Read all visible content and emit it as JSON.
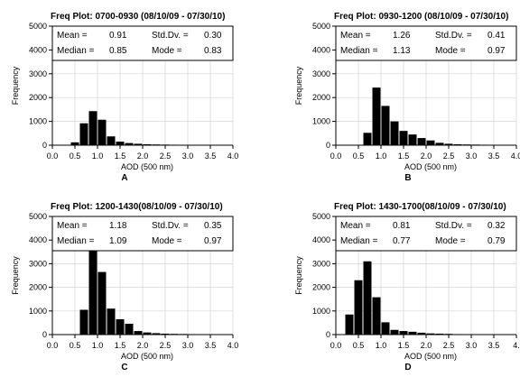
{
  "chart_data": [
    {
      "type": "bar",
      "panel": "A",
      "title": "Freq Plot: 0700-0930 (08/10/09 - 07/30/10)",
      "xlabel": "AOD (500 nm)",
      "ylabel": "Frequency",
      "xlim": [
        0.0,
        4.0
      ],
      "ylim": [
        0,
        5000
      ],
      "xticks": [
        "0.0",
        "0.5",
        "1.0",
        "1.5",
        "2.0",
        "2.5",
        "3.0",
        "3.5",
        "4.0"
      ],
      "yticks": [
        "0",
        "1000",
        "2000",
        "3000",
        "4000",
        "5000"
      ],
      "bin_width": 0.2,
      "x": [
        0.5,
        0.7,
        0.9,
        1.1,
        1.3,
        1.5,
        1.7,
        1.9,
        2.1,
        2.3,
        2.5,
        2.7,
        2.9,
        3.1
      ],
      "values": [
        120,
        920,
        1430,
        1070,
        370,
        150,
        90,
        60,
        40,
        30,
        25,
        20,
        15,
        10
      ],
      "grid": true,
      "stats": {
        "mean_label": "Mean =",
        "mean": "0.91",
        "std_label": "Std.Dv. =",
        "std": "0.30",
        "median_label": "Median =",
        "median": "0.85",
        "mode_label": "Mode =",
        "mode": "0.83"
      }
    },
    {
      "type": "bar",
      "panel": "B",
      "title": "Freq Plot: 0930-1200 (08/10/09 - 07/30/10)",
      "xlabel": "AOD (500 nm)",
      "ylabel": "Frequency",
      "xlim": [
        0.0,
        4.0
      ],
      "ylim": [
        0,
        5000
      ],
      "xticks": [
        "0.0",
        "0.5",
        "1.0",
        "1.5",
        "2.0",
        "2.5",
        "3.0",
        "3.5",
        "4.0"
      ],
      "yticks": [
        "0",
        "1000",
        "2000",
        "3000",
        "4000",
        "5000"
      ],
      "bin_width": 0.2,
      "x": [
        0.7,
        0.9,
        1.1,
        1.3,
        1.5,
        1.7,
        1.9,
        2.1,
        2.3,
        2.5,
        2.7,
        2.9,
        3.1,
        3.3,
        3.5,
        3.7
      ],
      "values": [
        520,
        2420,
        1650,
        1000,
        600,
        450,
        300,
        200,
        100,
        60,
        40,
        30,
        25,
        20,
        15,
        10
      ],
      "grid": true,
      "stats": {
        "mean_label": "Mean =",
        "mean": "1.26",
        "std_label": "Std.Dv. =",
        "std": "0.41",
        "median_label": "Median =",
        "median": "1.13",
        "mode_label": "Mode =",
        "mode": "0.97"
      }
    },
    {
      "type": "bar",
      "panel": "C",
      "title": "Freq Plot: 1200-1430(08/10/09 - 07/30/10)",
      "xlabel": "AOD (500 nm)",
      "ylabel": "Frequency",
      "xlim": [
        0.0,
        4.0
      ],
      "ylim": [
        0,
        5000
      ],
      "xticks": [
        "0.0",
        "0.5",
        "1.0",
        "1.5",
        "2.0",
        "2.5",
        "3.0",
        "3.5",
        "4.0"
      ],
      "yticks": [
        "0",
        "1000",
        "2000",
        "3000",
        "4000",
        "5000"
      ],
      "bin_width": 0.2,
      "x": [
        0.7,
        0.9,
        1.1,
        1.3,
        1.5,
        1.7,
        1.9,
        2.1,
        2.3,
        2.5,
        2.7,
        2.9,
        3.1,
        3.3,
        3.5,
        3.7
      ],
      "values": [
        1050,
        4020,
        2650,
        1100,
        650,
        460,
        150,
        90,
        60,
        40,
        30,
        25,
        20,
        15,
        10,
        10
      ],
      "grid": true,
      "stats": {
        "mean_label": "Mean =",
        "mean": "1.18",
        "std_label": "Std.Dv. =",
        "std": "0.35",
        "median_label": "Median =",
        "median": "1.09",
        "mode_label": "Mode =",
        "mode": "0.97"
      }
    },
    {
      "type": "bar",
      "panel": "D",
      "title": "Freq Plot: 1430-1700(08/10/09 - 07/30/10)",
      "xlabel": "AOD (500 nm)",
      "ylabel": "Frequency",
      "xlim": [
        0.0,
        4.0
      ],
      "ylim": [
        0,
        5000
      ],
      "xticks": [
        "0.0",
        "0.5",
        "1.0",
        "1.5",
        "2.0",
        "2.5",
        "3.0",
        "3.5",
        "4."
      ],
      "yticks": [
        "0",
        "1000",
        "2000",
        "3000",
        "4000",
        "5000"
      ],
      "bin_width": 0.2,
      "x": [
        0.3,
        0.5,
        0.7,
        0.9,
        1.1,
        1.3,
        1.5,
        1.7,
        1.9,
        2.1,
        2.3,
        2.5,
        2.7,
        2.9,
        3.1
      ],
      "values": [
        850,
        2300,
        3100,
        1580,
        520,
        200,
        150,
        120,
        80,
        50,
        40,
        30,
        20,
        15,
        10
      ],
      "grid": true,
      "stats": {
        "mean_label": "Mean =",
        "mean": "0.81",
        "std_label": "Std.Dv. =",
        "std": "0.32",
        "median_label": "Median =",
        "median": "0.77",
        "mode_label": "Mode =",
        "mode": "0.79"
      }
    }
  ]
}
